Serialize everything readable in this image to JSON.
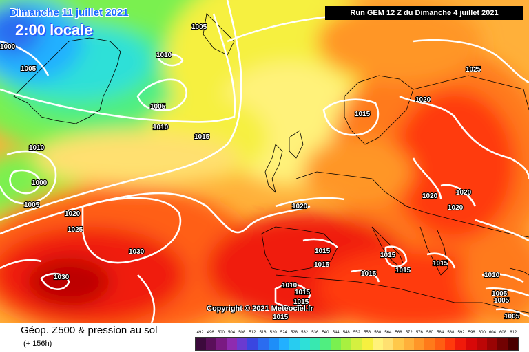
{
  "header": {
    "date_title": "Dimanche 11 juillet 2021",
    "time_title": "2:00 locale",
    "run_info": "Run GEM 12 Z du Dimanche 4 juillet 2021"
  },
  "copyright": "Copyright © 2021 Meteociel.fr",
  "legend": {
    "title": "Géop. Z500 & pression au sol",
    "subtitle": "(+ 156h)",
    "scale_labels": [
      "492",
      "496",
      "500",
      "504",
      "508",
      "512",
      "516",
      "520",
      "524",
      "528",
      "532",
      "536",
      "540",
      "544",
      "548",
      "552",
      "556",
      "560",
      "564",
      "568",
      "572",
      "576",
      "580",
      "584",
      "588",
      "592",
      "596",
      "600",
      "604",
      "608",
      "612"
    ],
    "scale_colors": [
      "#3c0a3c",
      "#5a0f5a",
      "#7a1a82",
      "#8e2bb0",
      "#6a3ad0",
      "#3a46e0",
      "#2a6cf0",
      "#1e8ef8",
      "#22b0ff",
      "#28ccf0",
      "#2ee0d8",
      "#38e8b0",
      "#50ee80",
      "#7af050",
      "#a8f040",
      "#d4f040",
      "#f6f040",
      "#fff27a",
      "#ffe070",
      "#ffc84a",
      "#ffb03a",
      "#ff9628",
      "#ff7a1a",
      "#ff5e12",
      "#ff3a0c",
      "#f01a0a",
      "#d80808",
      "#bc0606",
      "#9a0404",
      "#720202",
      "#4a0000"
    ]
  },
  "isobar_labels": [
    "1005",
    "1010",
    "1005",
    "1015",
    "1000",
    "1010",
    "1005",
    "1005",
    "1010",
    "1000",
    "1005",
    "1020",
    "1025",
    "1030",
    "1030",
    "1020",
    "1015",
    "1015",
    "1020",
    "1025",
    "1020",
    "1020",
    "1020",
    "1015",
    "1015",
    "1015",
    "1015",
    "1015",
    "1010",
    "1015",
    "1015",
    "1015",
    "1015",
    "1010",
    "1005",
    "1005",
    "1005",
    "1015"
  ]
}
